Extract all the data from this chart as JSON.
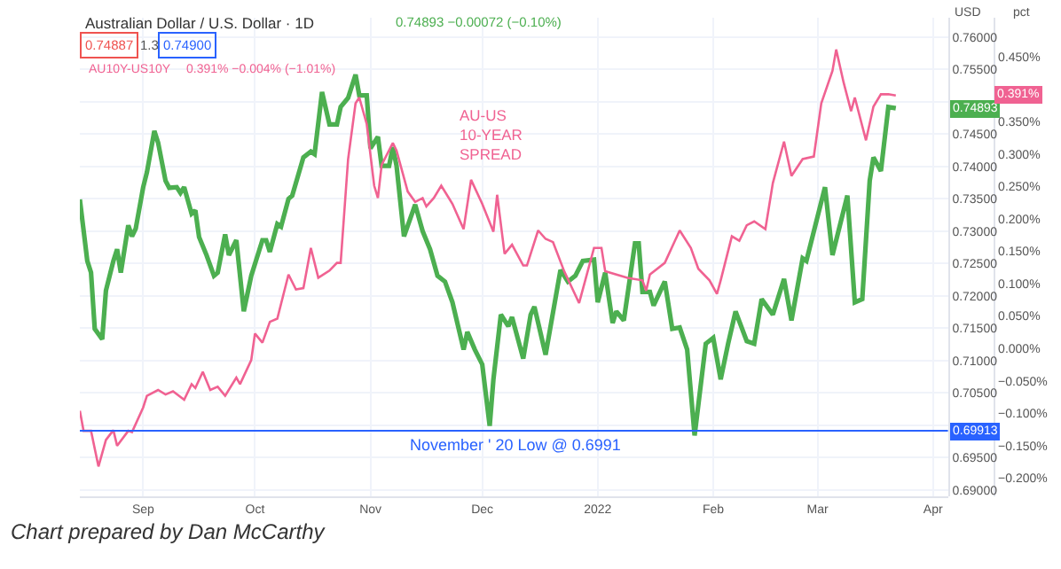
{
  "chart_data": {
    "type": "line",
    "title": "Australian Dollar / U.S. Dollar · 1D",
    "ylabel": "USD",
    "y2label": "pct",
    "annotations": [
      "0.74893 −0.00072 (−0.10%)",
      "0.74887",
      "1.3",
      "0.74900",
      "0.391% −0.004% (−1.01%)",
      "AU-US\n10-YEAR\nSPREAD",
      "0.74893",
      "0.391%",
      "0.69913",
      "Chart prepared by Dan McCarthy"
    ],
    "series": [
      {
        "color": "#4caf50",
        "x": [
          "2021-08-15",
          "2021-08-17",
          "2021-08-18",
          "2021-08-19",
          "2021-08-21",
          "2021-08-22",
          "2021-08-24",
          "2021-08-25",
          "2021-08-26",
          "2021-08-28",
          "2021-08-29",
          "2021-08-30",
          "2021-09-01",
          "2021-09-02",
          "2021-09-04",
          "2021-09-05",
          "2021-09-07",
          "2021-09-08",
          "2021-09-10",
          "2021-09-11",
          "2021-09-12",
          "2021-09-14",
          "2021-09-15",
          "2021-09-16",
          "2021-09-18",
          "2021-09-20",
          "2021-09-21",
          "2021-09-23",
          "2021-09-24",
          "2021-09-26",
          "2021-09-28",
          "2021-09-30",
          "2021-10-03",
          "2021-10-04",
          "2021-10-05",
          "2021-10-07",
          "2021-10-08",
          "2021-10-10",
          "2021-10-11",
          "2021-10-14",
          "2021-10-16",
          "2021-10-17",
          "2021-10-19",
          "2021-10-21",
          "2021-10-23",
          "2021-10-24",
          "2021-10-26",
          "2021-10-28",
          "2021-10-29",
          "2021-10-31",
          "2021-11-01",
          "2021-11-03",
          "2021-11-04",
          "2021-11-06",
          "2021-11-07",
          "2021-11-08",
          "2021-11-10",
          "2021-11-13",
          "2021-11-15",
          "2021-11-17",
          "2021-11-19",
          "2021-11-21",
          "2021-11-23",
          "2021-11-26",
          "2021-11-27",
          "2021-11-29",
          "2021-12-01",
          "2021-12-03",
          "2021-12-04",
          "2021-12-06",
          "2021-12-08",
          "2021-12-09",
          "2021-12-12",
          "2021-12-14",
          "2021-12-15",
          "2021-12-18",
          "2021-12-22",
          "2021-12-24",
          "2021-12-26",
          "2021-12-28",
          "2021-12-31",
          "2022-01-01",
          "2022-01-03",
          "2022-01-05",
          "2022-01-06",
          "2022-01-08",
          "2022-01-11",
          "2022-01-12",
          "2022-01-13",
          "2022-01-15",
          "2022-01-16",
          "2022-01-19",
          "2022-01-21",
          "2022-01-23",
          "2022-01-25",
          "2022-01-27",
          "2022-01-30",
          "2022-02-01",
          "2022-02-03",
          "2022-02-05",
          "2022-02-07",
          "2022-02-10",
          "2022-02-12",
          "2022-02-14",
          "2022-02-17",
          "2022-02-20",
          "2022-02-22",
          "2022-02-25",
          "2022-02-26",
          "2022-03-03",
          "2022-03-05",
          "2022-03-09",
          "2022-03-11",
          "2022-03-13",
          "2022-03-15",
          "2022-03-16",
          "2022-03-18",
          "2022-03-20",
          "2022-03-22"
        ],
        "values": [
          0.7349,
          0.7254,
          0.7236,
          0.7149,
          0.7133,
          0.7208,
          0.7254,
          0.7272,
          0.7236,
          0.7309,
          0.7292,
          0.7304,
          0.7368,
          0.7391,
          0.7455,
          0.7437,
          0.7378,
          0.7367,
          0.7368,
          0.7359,
          0.7368,
          0.7327,
          0.7332,
          0.7291,
          0.7263,
          0.7231,
          0.7236,
          0.7295,
          0.7263,
          0.7286,
          0.7176,
          0.7231,
          0.7286,
          0.7286,
          0.7268,
          0.7311,
          0.7307,
          0.735,
          0.7355,
          0.7414,
          0.7423,
          0.7419,
          0.7515,
          0.7465,
          0.7465,
          0.7492,
          0.7506,
          0.7542,
          0.751,
          0.751,
          0.7428,
          0.7446,
          0.7401,
          0.7401,
          0.743,
          0.7401,
          0.7292,
          0.7341,
          0.73,
          0.7272,
          0.7231,
          0.7222,
          0.719,
          0.7117,
          0.7144,
          0.7117,
          0.7094,
          0.6999,
          0.7071,
          0.7171,
          0.7153,
          0.7167,
          0.7103,
          0.7171,
          0.7183,
          0.7109,
          0.724,
          0.7222,
          0.7231,
          0.7254,
          0.7256,
          0.719,
          0.7236,
          0.7158,
          0.7176,
          0.7162,
          0.7281,
          0.7281,
          0.7206,
          0.7206,
          0.7185,
          0.7222,
          0.7149,
          0.7151,
          0.7117,
          0.6984,
          0.7126,
          0.7135,
          0.7071,
          0.7126,
          0.7176,
          0.713,
          0.7126,
          0.7195,
          0.7171,
          0.7226,
          0.7162,
          0.7258,
          0.7254,
          0.7368,
          0.7263,
          0.7355,
          0.719,
          0.7195,
          0.7378,
          0.7414,
          0.7393,
          0.7492,
          0.749
        ]
      },
      {
        "name": "AU10Y-US10Y",
        "color": "#f06292",
        "axis": "y2",
        "x": [
          "2021-08-15",
          "2021-08-16",
          "2021-08-18",
          "2021-08-20",
          "2021-08-22",
          "2021-08-24",
          "2021-08-25",
          "2021-08-28",
          "2021-08-29",
          "2021-09-01",
          "2021-09-02",
          "2021-09-05",
          "2021-09-07",
          "2021-09-09",
          "2021-09-12",
          "2021-09-14",
          "2021-09-15",
          "2021-09-17",
          "2021-09-19",
          "2021-09-21",
          "2021-09-23",
          "2021-09-26",
          "2021-09-27",
          "2021-09-30",
          "2021-10-01",
          "2021-10-03",
          "2021-10-05",
          "2021-10-07",
          "2021-10-10",
          "2021-10-12",
          "2021-10-14",
          "2021-10-16",
          "2021-10-18",
          "2021-10-21",
          "2021-10-23",
          "2021-10-24",
          "2021-10-26",
          "2021-10-28",
          "2021-10-29",
          "2021-10-31",
          "2021-11-02",
          "2021-11-03",
          "2021-11-04",
          "2021-11-07",
          "2021-11-08",
          "2021-11-11",
          "2021-11-13",
          "2021-11-15",
          "2021-11-16",
          "2021-11-18",
          "2021-11-20",
          "2021-11-23",
          "2021-11-26",
          "2021-11-28",
          "2021-12-01",
          "2021-12-04",
          "2021-12-05",
          "2021-12-07",
          "2021-12-09",
          "2021-12-12",
          "2021-12-13",
          "2021-12-16",
          "2021-12-18",
          "2021-12-20",
          "2021-12-23",
          "2021-12-27",
          "2021-12-31",
          "2022-01-02",
          "2022-01-03",
          "2022-01-06",
          "2022-01-09",
          "2022-01-13",
          "2022-01-14",
          "2022-01-15",
          "2022-01-19",
          "2022-01-23",
          "2022-01-26",
          "2022-01-28",
          "2022-01-31",
          "2022-02-02",
          "2022-02-03",
          "2022-02-06",
          "2022-02-08",
          "2022-02-10",
          "2022-02-12",
          "2022-02-15",
          "2022-02-17",
          "2022-02-20",
          "2022-02-22",
          "2022-02-25",
          "2022-02-28",
          "2022-03-02",
          "2022-03-05",
          "2022-03-06",
          "2022-03-08",
          "2022-03-10",
          "2022-03-11",
          "2022-03-14",
          "2022-03-16",
          "2022-03-18",
          "2022-03-20",
          "2022-03-22"
        ],
        "values": [
          -0.096,
          -0.127,
          -0.127,
          -0.182,
          -0.141,
          -0.126,
          -0.15,
          -0.127,
          -0.129,
          -0.091,
          -0.073,
          -0.064,
          -0.071,
          -0.066,
          -0.079,
          -0.055,
          -0.061,
          -0.036,
          -0.064,
          -0.059,
          -0.073,
          -0.045,
          -0.055,
          -0.018,
          0.023,
          0.009,
          0.041,
          0.046,
          0.114,
          0.091,
          0.093,
          0.155,
          0.109,
          0.12,
          0.132,
          0.132,
          0.292,
          0.378,
          0.387,
          0.346,
          0.251,
          0.232,
          0.283,
          0.317,
          0.305,
          0.242,
          0.226,
          0.232,
          0.219,
          0.232,
          0.251,
          0.223,
          0.184,
          0.26,
          0.223,
          0.18,
          0.237,
          0.146,
          0.16,
          0.128,
          0.128,
          0.182,
          0.169,
          0.164,
          0.119,
          0.07,
          0.155,
          0.155,
          0.119,
          0.114,
          0.109,
          0.105,
          0.089,
          0.114,
          0.132,
          0.182,
          0.155,
          0.123,
          0.105,
          0.084,
          0.105,
          0.173,
          0.166,
          0.19,
          0.196,
          0.184,
          0.255,
          0.319,
          0.266,
          0.292,
          0.296,
          0.378,
          0.428,
          0.461,
          0.41,
          0.366,
          0.387,
          0.321,
          0.373,
          0.392,
          0.392,
          0.39
        ]
      }
    ],
    "xlim": [
      "2021-08-15",
      "2022-04-05"
    ],
    "xticks": [
      {
        "value": "2021-09-01",
        "label": "Sep"
      },
      {
        "value": "2021-10-01",
        "label": "Oct"
      },
      {
        "value": "2021-11-01",
        "label": "Nov"
      },
      {
        "value": "2021-12-01",
        "label": "Dec"
      },
      {
        "value": "2022-01-01",
        "label": "2022"
      },
      {
        "value": "2022-02-01",
        "label": "Feb"
      },
      {
        "value": "2022-03-01",
        "label": "Mar"
      },
      {
        "value": "2022-04-01",
        "label": "Apr"
      }
    ],
    "ylim": [
      0.689,
      0.763
    ],
    "yticks": [
      {
        "value": 0.69,
        "label": "0.69000"
      },
      {
        "value": 0.695,
        "label": "0.69500"
      },
      {
        "value": 0.7,
        "label": null
      },
      {
        "value": 0.705,
        "label": "0.70500"
      },
      {
        "value": 0.71,
        "label": "0.71000"
      },
      {
        "value": 0.715,
        "label": "0.71500"
      },
      {
        "value": 0.72,
        "label": "0.72000"
      },
      {
        "value": 0.725,
        "label": "0.72500"
      },
      {
        "value": 0.73,
        "label": "0.73000"
      },
      {
        "value": 0.735,
        "label": "0.73500"
      },
      {
        "value": 0.74,
        "label": "0.74000"
      },
      {
        "value": 0.745,
        "label": "0.74500"
      },
      {
        "value": 0.75,
        "label": null
      },
      {
        "value": 0.755,
        "label": "0.75500"
      },
      {
        "value": 0.76,
        "label": "0.76000"
      }
    ],
    "y2lim": [
      -0.228,
      0.51
    ],
    "y2ticks": [
      {
        "value": -0.2,
        "label": "−0.200%"
      },
      {
        "value": -0.15,
        "label": "−0.150%"
      },
      {
        "value": -0.1,
        "label": "−0.100%"
      },
      {
        "value": -0.05,
        "label": "−0.050%"
      },
      {
        "value": 0,
        "label": "0.000%"
      },
      {
        "value": 0.05,
        "label": "0.050%"
      },
      {
        "value": 0.1,
        "label": "0.100%"
      },
      {
        "value": 0.15,
        "label": "0.150%"
      },
      {
        "value": 0.2,
        "label": "0.200%"
      },
      {
        "value": 0.25,
        "label": "0.250%"
      },
      {
        "value": 0.3,
        "label": "0.300%"
      },
      {
        "value": 0.35,
        "label": "0.350%"
      },
      {
        "value": 0.45,
        "label": "0.450%"
      }
    ],
    "ref_lines": [
      {
        "axis": "y",
        "value": 0.69913,
        "label": "November ' 20 Low @ 0.6991",
        "color": "#2962ff"
      }
    ],
    "grid": true,
    "legend": false,
    "marker": "none",
    "line_style": "solid"
  }
}
